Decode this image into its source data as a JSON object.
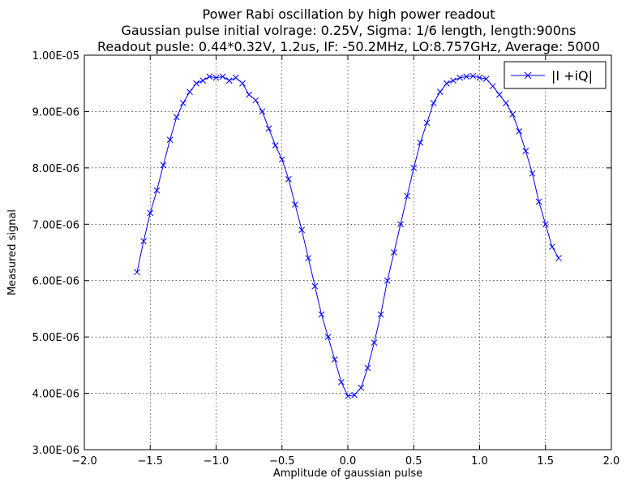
{
  "chart_data": {
    "type": "line",
    "title_lines": [
      "Power Rabi oscillation by high power readout",
      "Gaussian pulse initial volrage: 0.25V, Sigma: 1/6 length, length:900ns",
      "Readout pusle: 0.44*0.32V, 1.2us, IF: -50.2MHz, LO:8.757GHz, Average: 5000"
    ],
    "xlabel": "Amplitude of gaussian pulse",
    "ylabel": "Measured signal",
    "xlim": [
      -2.0,
      2.0
    ],
    "ylim": [
      3e-06,
      1e-05
    ],
    "x_ticks": [
      -2.0,
      -1.5,
      -1.0,
      -0.5,
      0.0,
      0.5,
      1.0,
      1.5,
      2.0
    ],
    "x_tick_labels": [
      "−2.0",
      "−1.5",
      "−1.0",
      "−0.5",
      "0.0",
      "0.5",
      "1.0",
      "1.5",
      "2.0"
    ],
    "y_ticks": [
      3e-06,
      4e-06,
      5e-06,
      6e-06,
      7e-06,
      8e-06,
      9e-06,
      1e-05
    ],
    "y_tick_labels": [
      "3.00E-06",
      "4.00E-06",
      "5.00E-06",
      "6.00E-06",
      "7.00E-06",
      "8.00E-06",
      "9.00E-06",
      "1.00E-05"
    ],
    "grid": true,
    "legend_position": "top-right",
    "series": [
      {
        "name": "|I +iQ|",
        "color": "#0000ff",
        "marker": "x",
        "x": [
          -1.6,
          -1.55,
          -1.5,
          -1.45,
          -1.4,
          -1.35,
          -1.3,
          -1.25,
          -1.2,
          -1.15,
          -1.1,
          -1.05,
          -1.0,
          -0.95,
          -0.9,
          -0.85,
          -0.8,
          -0.75,
          -0.7,
          -0.65,
          -0.6,
          -0.55,
          -0.5,
          -0.45,
          -0.4,
          -0.35,
          -0.3,
          -0.25,
          -0.2,
          -0.15,
          -0.1,
          -0.05,
          0.0,
          0.05,
          0.1,
          0.15,
          0.2,
          0.25,
          0.3,
          0.35,
          0.4,
          0.45,
          0.5,
          0.55,
          0.6,
          0.65,
          0.7,
          0.75,
          0.8,
          0.85,
          0.9,
          0.95,
          1.0,
          1.05,
          1.1,
          1.15,
          1.2,
          1.25,
          1.3,
          1.35,
          1.4,
          1.45,
          1.5,
          1.55,
          1.6
        ],
        "y": [
          6.15e-06,
          6.7e-06,
          7.2e-06,
          7.6e-06,
          8.05e-06,
          8.5e-06,
          8.9e-06,
          9.15e-06,
          9.35e-06,
          9.5e-06,
          9.55e-06,
          9.62e-06,
          9.6e-06,
          9.62e-06,
          9.55e-06,
          9.6e-06,
          9.5e-06,
          9.3e-06,
          9.2e-06,
          9e-06,
          8.7e-06,
          8.4e-06,
          8.15e-06,
          7.8e-06,
          7.35e-06,
          6.9e-06,
          6.4e-06,
          5.9e-06,
          5.4e-06,
          5e-06,
          4.6e-06,
          4.2e-06,
          3.95e-06,
          3.97e-06,
          4.1e-06,
          4.45e-06,
          4.9e-06,
          5.4e-06,
          6e-06,
          6.5e-06,
          7e-06,
          7.5e-06,
          8e-06,
          8.45e-06,
          8.8e-06,
          9.15e-06,
          9.35e-06,
          9.5e-06,
          9.55e-06,
          9.6e-06,
          9.62e-06,
          9.63e-06,
          9.6e-06,
          9.58e-06,
          9.45e-06,
          9.3e-06,
          9.15e-06,
          8.95e-06,
          8.65e-06,
          8.3e-06,
          7.9e-06,
          7.4e-06,
          7e-06,
          6.6e-06,
          6.4e-06
        ]
      }
    ]
  }
}
